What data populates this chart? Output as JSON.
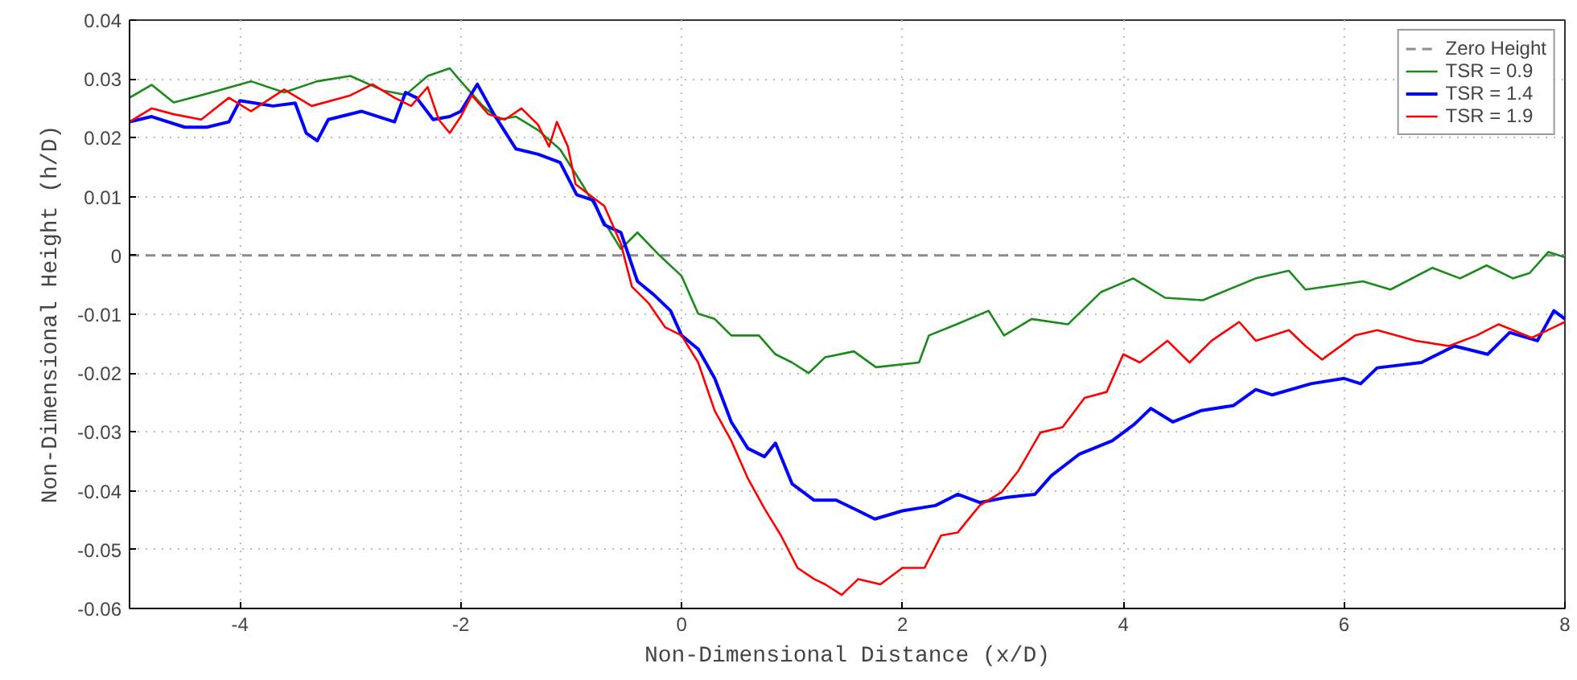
{
  "chart_data": {
    "type": "line",
    "xlabel": "Non-Dimensional Distance (x/D)",
    "ylabel": "Non-Dimensional Height (h/D)",
    "xlim": [
      -5,
      8
    ],
    "xticks": [
      -4,
      -2,
      0,
      2,
      4,
      6,
      8
    ],
    "ylim": [
      -0.06,
      0.04
    ],
    "yticks": [
      -0.06,
      -0.05,
      -0.04,
      -0.03,
      -0.02,
      -0.01,
      0,
      0.01,
      0.02,
      0.03,
      0.04
    ],
    "grid": true,
    "legend": "top right",
    "line_style": "solid",
    "marker": "none",
    "ref_lines": [
      {
        "axis": "y",
        "value": 0,
        "label": "Zero Height",
        "color": "#8c8c8c",
        "line_style": "dashed"
      }
    ],
    "series": [
      {
        "name": "TSR = 0.9",
        "color": "#1a8a1a",
        "x": [
          -5,
          -4.8,
          -4.6,
          -4.2,
          -3.9,
          -3.6,
          -3.3,
          -3.0,
          -2.7,
          -2.5,
          -2.3,
          -2.1,
          -2.0,
          -1.8,
          -1.65,
          -1.5,
          -1.3,
          -1.1,
          -0.9,
          -0.7,
          -0.55,
          -0.4,
          -0.2,
          0,
          0.15,
          0.3,
          0.45,
          0.7,
          0.85,
          1.0,
          1.15,
          1.3,
          1.56,
          1.76,
          2.15,
          2.24,
          2.49,
          2.78,
          2.92,
          3.17,
          3.5,
          3.8,
          4.09,
          4.38,
          4.72,
          5.2,
          5.5,
          5.65,
          6.17,
          6.42,
          6.8,
          7.05,
          7.29,
          7.53,
          7.68,
          7.85,
          8
        ],
        "values": [
          0.0268,
          0.029,
          0.026,
          0.028,
          0.0296,
          0.0277,
          0.0296,
          0.0305,
          0.028,
          0.0273,
          0.0305,
          0.0318,
          0.0296,
          0.0254,
          0.0231,
          0.0236,
          0.0213,
          0.018,
          0.0121,
          0.0057,
          0.0011,
          0.0039,
          0,
          -0.0035,
          -0.0099,
          -0.0108,
          -0.0136,
          -0.0136,
          -0.0168,
          -0.0182,
          -0.02,
          -0.0173,
          -0.0163,
          -0.019,
          -0.0182,
          -0.0136,
          -0.0117,
          -0.0094,
          -0.0136,
          -0.0108,
          -0.0117,
          -0.0062,
          -0.0039,
          -0.0072,
          -0.0076,
          -0.0039,
          -0.0026,
          -0.0058,
          -0.0044,
          -0.0058,
          -0.0021,
          -0.0039,
          -0.0017,
          -0.0039,
          -0.003,
          0.0006,
          -0.0003
        ]
      },
      {
        "name": "TSR = 1.4",
        "color": "#0000ff",
        "x": [
          -5,
          -4.8,
          -4.5,
          -4.3,
          -4.1,
          -4.0,
          -3.7,
          -3.5,
          -3.4,
          -3.3,
          -3.2,
          -2.9,
          -2.6,
          -2.5,
          -2.4,
          -2.25,
          -2.1,
          -2.0,
          -1.85,
          -1.7,
          -1.5,
          -1.3,
          -1.1,
          -0.95,
          -0.8,
          -0.7,
          -0.55,
          -0.4,
          -0.25,
          -0.1,
          0,
          0.15,
          0.3,
          0.45,
          0.6,
          0.75,
          0.85,
          1.0,
          1.2,
          1.4,
          1.6,
          1.75,
          2.0,
          2.3,
          2.5,
          2.7,
          2.95,
          3.2,
          3.35,
          3.6,
          3.9,
          4.1,
          4.25,
          4.45,
          4.7,
          5.0,
          5.2,
          5.35,
          5.7,
          6.0,
          6.15,
          6.3,
          6.7,
          7.0,
          7.3,
          7.5,
          7.75,
          7.9,
          8
        ],
        "values": [
          0.0227,
          0.0236,
          0.0218,
          0.0218,
          0.0227,
          0.0263,
          0.0254,
          0.0259,
          0.0208,
          0.0195,
          0.0231,
          0.0245,
          0.0227,
          0.0277,
          0.0268,
          0.0231,
          0.0236,
          0.0245,
          0.0291,
          0.024,
          0.0181,
          0.0172,
          0.0158,
          0.0103,
          0.0094,
          0.0052,
          0.0039,
          -0.0044,
          -0.0067,
          -0.0094,
          -0.0136,
          -0.0159,
          -0.0209,
          -0.0283,
          -0.0328,
          -0.0342,
          -0.0319,
          -0.0388,
          -0.0416,
          -0.0416,
          -0.0434,
          -0.0448,
          -0.0434,
          -0.0425,
          -0.0406,
          -0.042,
          -0.0411,
          -0.0406,
          -0.0374,
          -0.0338,
          -0.0315,
          -0.0287,
          -0.026,
          -0.0283,
          -0.0264,
          -0.0255,
          -0.0228,
          -0.0237,
          -0.0218,
          -0.0209,
          -0.0218,
          -0.0191,
          -0.0182,
          -0.0154,
          -0.0168,
          -0.0131,
          -0.0145,
          -0.0094,
          -0.0108
        ]
      },
      {
        "name": "TSR = 1.9",
        "color": "#ff0000",
        "x": [
          -5,
          -4.8,
          -4.6,
          -4.35,
          -4.1,
          -3.9,
          -3.6,
          -3.35,
          -3.0,
          -2.8,
          -2.6,
          -2.45,
          -2.3,
          -2.2,
          -2.1,
          -2.0,
          -1.9,
          -1.75,
          -1.6,
          -1.45,
          -1.3,
          -1.2,
          -1.13,
          -1.03,
          -0.96,
          -0.8,
          -0.7,
          -0.55,
          -0.45,
          -0.3,
          -0.15,
          0,
          0.15,
          0.3,
          0.45,
          0.6,
          0.75,
          0.9,
          1.05,
          1.2,
          1.3,
          1.45,
          1.6,
          1.8,
          2.0,
          2.2,
          2.35,
          2.5,
          2.7,
          2.9,
          3.05,
          3.25,
          3.45,
          3.65,
          3.85,
          4.0,
          4.15,
          4.4,
          4.6,
          4.8,
          5.05,
          5.2,
          5.5,
          5.65,
          5.8,
          6.1,
          6.3,
          6.65,
          6.95,
          7.2,
          7.4,
          7.7,
          7.9,
          8
        ],
        "values": [
          0.0227,
          0.025,
          0.024,
          0.0231,
          0.0268,
          0.0245,
          0.0282,
          0.0254,
          0.0272,
          0.0291,
          0.0268,
          0.0254,
          0.0286,
          0.0231,
          0.0208,
          0.0236,
          0.0272,
          0.024,
          0.0231,
          0.025,
          0.0222,
          0.0185,
          0.0227,
          0.0185,
          0.0121,
          0.0098,
          0.0084,
          0.002,
          -0.0053,
          -0.0081,
          -0.0122,
          -0.0136,
          -0.0182,
          -0.0264,
          -0.0315,
          -0.0379,
          -0.043,
          -0.0476,
          -0.0531,
          -0.055,
          -0.0559,
          -0.0577,
          -0.055,
          -0.0559,
          -0.0531,
          -0.0531,
          -0.0476,
          -0.0471,
          -0.0425,
          -0.0402,
          -0.0366,
          -0.0301,
          -0.0292,
          -0.0242,
          -0.0232,
          -0.0168,
          -0.0182,
          -0.0145,
          -0.0182,
          -0.0145,
          -0.0113,
          -0.0145,
          -0.0127,
          -0.0154,
          -0.0177,
          -0.0136,
          -0.0127,
          -0.0145,
          -0.0154,
          -0.0136,
          -0.0117,
          -0.014,
          -0.0122,
          -0.0113
        ]
      }
    ]
  }
}
